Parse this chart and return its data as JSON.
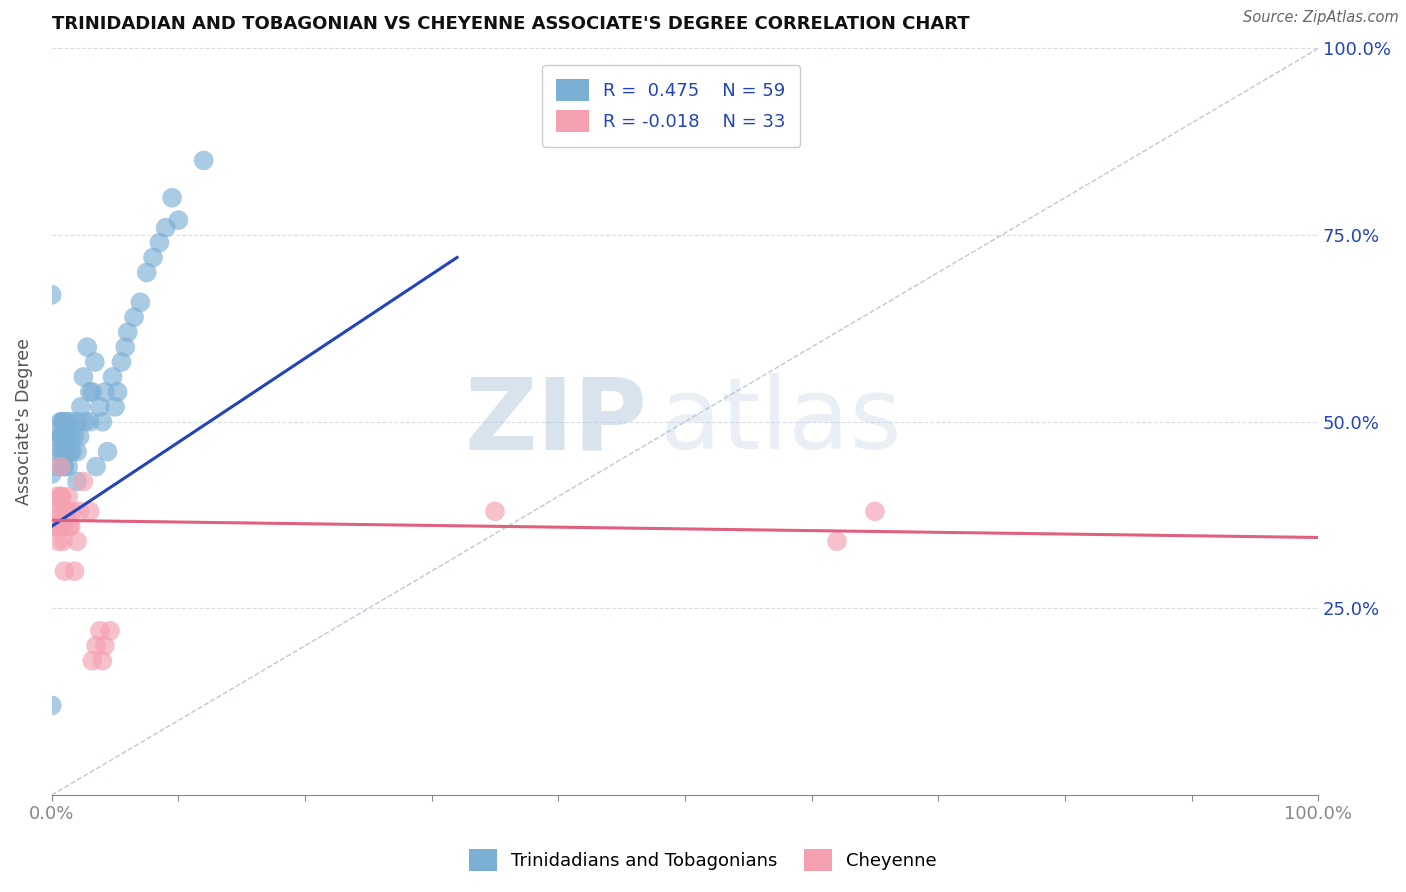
{
  "title": "TRINIDADIAN AND TOBAGONIAN VS CHEYENNE ASSOCIATE'S DEGREE CORRELATION CHART",
  "source": "Source: ZipAtlas.com",
  "ylabel": "Associate's Degree",
  "xlim": [
    0,
    1
  ],
  "ylim": [
    0,
    1
  ],
  "xtick_labels_bottom": [
    "0.0%",
    "",
    "",
    "",
    "",
    "",
    "",
    "",
    "",
    "",
    "100.0%"
  ],
  "xtick_vals": [
    0.0,
    0.1,
    0.2,
    0.3,
    0.4,
    0.5,
    0.6,
    0.7,
    0.8,
    0.9,
    1.0
  ],
  "ytick_labels_right": [
    "25.0%",
    "50.0%",
    "75.0%",
    "100.0%"
  ],
  "ytick_vals": [
    0.25,
    0.5,
    0.75,
    1.0
  ],
  "blue_R": 0.475,
  "blue_N": 59,
  "pink_R": -0.018,
  "pink_N": 33,
  "blue_color": "#7bafd4",
  "pink_color": "#f4a0b0",
  "blue_line_color": "#2244bb",
  "pink_line_color": "#e06080",
  "legend_text_color": "#2244bb",
  "watermark_zip": "ZIP",
  "watermark_atlas": "atlas",
  "blue_scatter_x": [
    0.0,
    0.0,
    0.0,
    0.0,
    0.005,
    0.005,
    0.007,
    0.007,
    0.008,
    0.008,
    0.008,
    0.009,
    0.009,
    0.009,
    0.01,
    0.01,
    0.01,
    0.01,
    0.012,
    0.012,
    0.013,
    0.013,
    0.015,
    0.015,
    0.015,
    0.016,
    0.018,
    0.02,
    0.02,
    0.02,
    0.022,
    0.023,
    0.025,
    0.026,
    0.028,
    0.03,
    0.03,
    0.032,
    0.034,
    0.035,
    0.038,
    0.04,
    0.042,
    0.044,
    0.048,
    0.05,
    0.052,
    0.055,
    0.058,
    0.06,
    0.065,
    0.07,
    0.075,
    0.08,
    0.085,
    0.09,
    0.095,
    0.1,
    0.12
  ],
  "blue_scatter_y": [
    0.12,
    0.67,
    0.43,
    0.48,
    0.44,
    0.46,
    0.48,
    0.5,
    0.46,
    0.48,
    0.5,
    0.44,
    0.46,
    0.5,
    0.44,
    0.46,
    0.48,
    0.5,
    0.46,
    0.5,
    0.44,
    0.48,
    0.46,
    0.48,
    0.5,
    0.46,
    0.48,
    0.42,
    0.46,
    0.5,
    0.48,
    0.52,
    0.56,
    0.5,
    0.6,
    0.5,
    0.54,
    0.54,
    0.58,
    0.44,
    0.52,
    0.5,
    0.54,
    0.46,
    0.56,
    0.52,
    0.54,
    0.58,
    0.6,
    0.62,
    0.64,
    0.66,
    0.7,
    0.72,
    0.74,
    0.76,
    0.8,
    0.77,
    0.85
  ],
  "pink_scatter_x": [
    0.0,
    0.002,
    0.003,
    0.004,
    0.005,
    0.006,
    0.007,
    0.007,
    0.008,
    0.008,
    0.009,
    0.009,
    0.01,
    0.01,
    0.012,
    0.013,
    0.014,
    0.015,
    0.016,
    0.018,
    0.02,
    0.022,
    0.025,
    0.03,
    0.032,
    0.035,
    0.038,
    0.04,
    0.042,
    0.046,
    0.35,
    0.62,
    0.65
  ],
  "pink_scatter_y": [
    0.38,
    0.36,
    0.38,
    0.4,
    0.34,
    0.36,
    0.4,
    0.44,
    0.36,
    0.4,
    0.34,
    0.36,
    0.3,
    0.38,
    0.38,
    0.4,
    0.36,
    0.36,
    0.38,
    0.3,
    0.34,
    0.38,
    0.42,
    0.38,
    0.18,
    0.2,
    0.22,
    0.18,
    0.2,
    0.22,
    0.38,
    0.34,
    0.38
  ],
  "blue_line_x": [
    0.0,
    0.32
  ],
  "blue_line_y": [
    0.36,
    0.72
  ],
  "pink_line_x": [
    0.0,
    1.0
  ],
  "pink_line_y": [
    0.368,
    0.345
  ]
}
